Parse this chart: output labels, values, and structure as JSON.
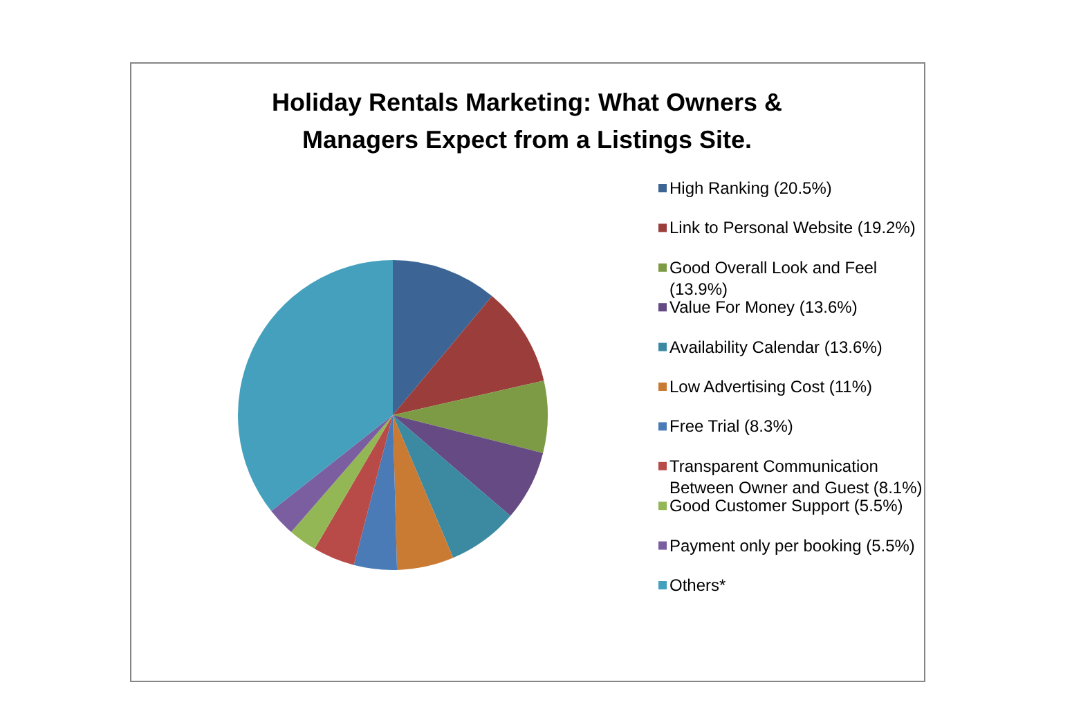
{
  "chart_data": {
    "type": "pie",
    "title": "Holiday Rentals Marketing: What Owners & Managers Expect from a Listings Site.",
    "categories": [
      "High Ranking (20.5%)",
      "Link to Personal Website (19.2%)",
      "Good Overall Look and Feel (13.9%)",
      "Value For Money (13.6%)",
      "Availability Calendar (13.6%)",
      "Low Advertising Cost (11%)",
      "Free Trial (8.3%)",
      "Transparent Communication Between Owner and Guest (8.1%)",
      "Good Customer Support (5.5%)",
      "Payment only per booking (5.5%)",
      "Others*"
    ],
    "values": [
      20.5,
      19.2,
      13.9,
      13.6,
      13.6,
      11,
      8.3,
      8.1,
      5.5,
      5.5,
      66
    ],
    "colors": [
      "#3c6595",
      "#9b3d3b",
      "#7d9b45",
      "#654a83",
      "#3b8aa2",
      "#c97a33",
      "#4a7bb7",
      "#b84b48",
      "#93b755",
      "#7b5ea0",
      "#44a0bd"
    ],
    "legend": "right"
  }
}
